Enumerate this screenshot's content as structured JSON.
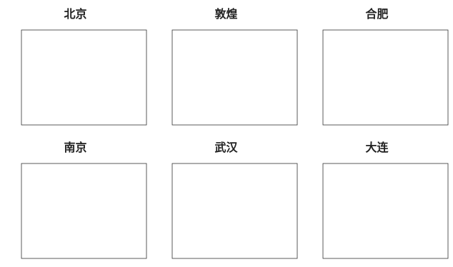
{
  "chart_data": [
    {
      "type": "line",
      "title": "北京",
      "x": [],
      "series": []
    },
    {
      "type": "line",
      "title": "敦煌",
      "x": [],
      "series": []
    },
    {
      "type": "line",
      "title": "合肥",
      "x": [],
      "series": []
    },
    {
      "type": "line",
      "title": "南京",
      "x": [],
      "series": []
    },
    {
      "type": "line",
      "title": "武汉",
      "x": [],
      "series": []
    },
    {
      "type": "line",
      "title": "大连",
      "x": [],
      "series": []
    }
  ],
  "colors": {
    "error_bar": "#d9534f",
    "fit_line": "#111111",
    "legend_text": "#4a5a9a"
  }
}
